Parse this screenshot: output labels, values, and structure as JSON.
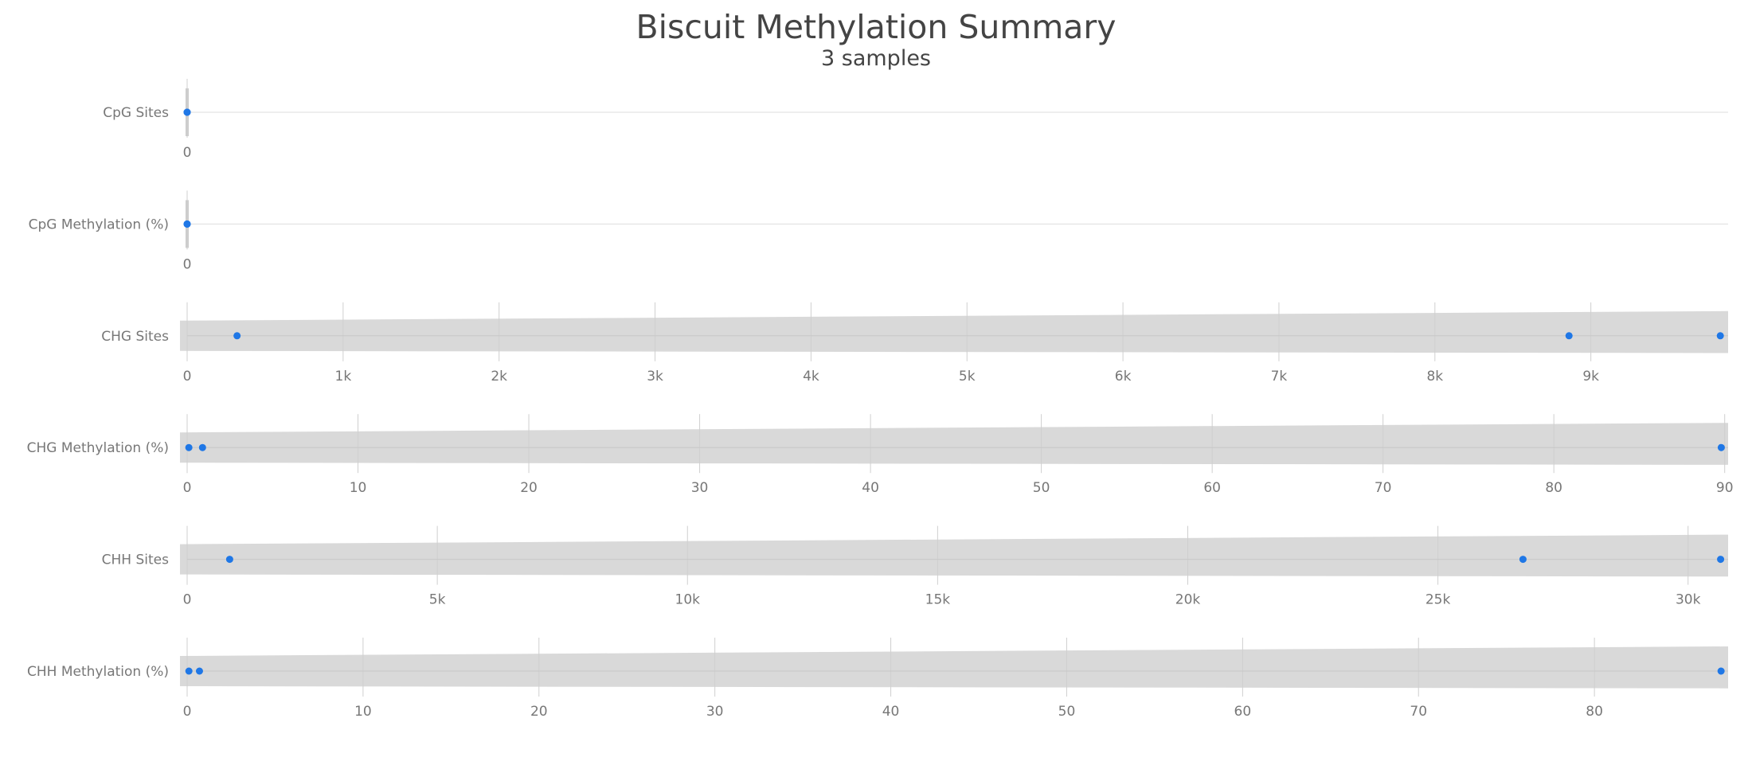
{
  "title": "Biscuit Methylation Summary",
  "subtitle": "3 samples",
  "chart_data": {
    "type": "violin",
    "point_color": "#1f77e6",
    "violin_color": "#d9d9d9",
    "grid": true,
    "rows": [
      {
        "label": "CpG Sites",
        "xlim": [
          0,
          1
        ],
        "ticks": [
          0
        ],
        "tick_labels": [
          "0"
        ],
        "values": [
          0,
          0,
          0
        ]
      },
      {
        "label": "CpG Methylation (%)",
        "xlim": [
          0,
          1
        ],
        "ticks": [
          0
        ],
        "tick_labels": [
          "0"
        ],
        "values": [
          0,
          0,
          0
        ]
      },
      {
        "label": "CHG Sites",
        "xlim": [
          0,
          9880
        ],
        "ticks": [
          0,
          1000,
          2000,
          3000,
          4000,
          5000,
          6000,
          7000,
          8000,
          9000
        ],
        "tick_labels": [
          "0",
          "1k",
          "2k",
          "3k",
          "4k",
          "5k",
          "6k",
          "7k",
          "8k",
          "9k"
        ],
        "values": [
          320,
          8860,
          9830
        ]
      },
      {
        "label": "CHG Methylation (%)",
        "xlim": [
          0,
          90.2
        ],
        "ticks": [
          0,
          10,
          20,
          30,
          40,
          50,
          60,
          70,
          80,
          90
        ],
        "tick_labels": [
          "0",
          "10",
          "20",
          "30",
          "40",
          "50",
          "60",
          "70",
          "80",
          "90"
        ],
        "values": [
          0.1,
          0.9,
          89.8
        ]
      },
      {
        "label": "CHH Sites",
        "xlim": [
          0,
          30800
        ],
        "ticks": [
          0,
          5000,
          10000,
          15000,
          20000,
          25000,
          30000
        ],
        "tick_labels": [
          "0",
          "5k",
          "10k",
          "15k",
          "20k",
          "25k",
          "30k"
        ],
        "values": [
          850,
          26700,
          30650
        ]
      },
      {
        "label": "CHH Methylation (%)",
        "xlim": [
          0,
          87.6
        ],
        "ticks": [
          0,
          10,
          20,
          30,
          40,
          50,
          60,
          70,
          80
        ],
        "tick_labels": [
          "0",
          "10",
          "20",
          "30",
          "40",
          "50",
          "60",
          "70",
          "80"
        ],
        "values": [
          0.1,
          0.7,
          87.2
        ]
      }
    ]
  }
}
